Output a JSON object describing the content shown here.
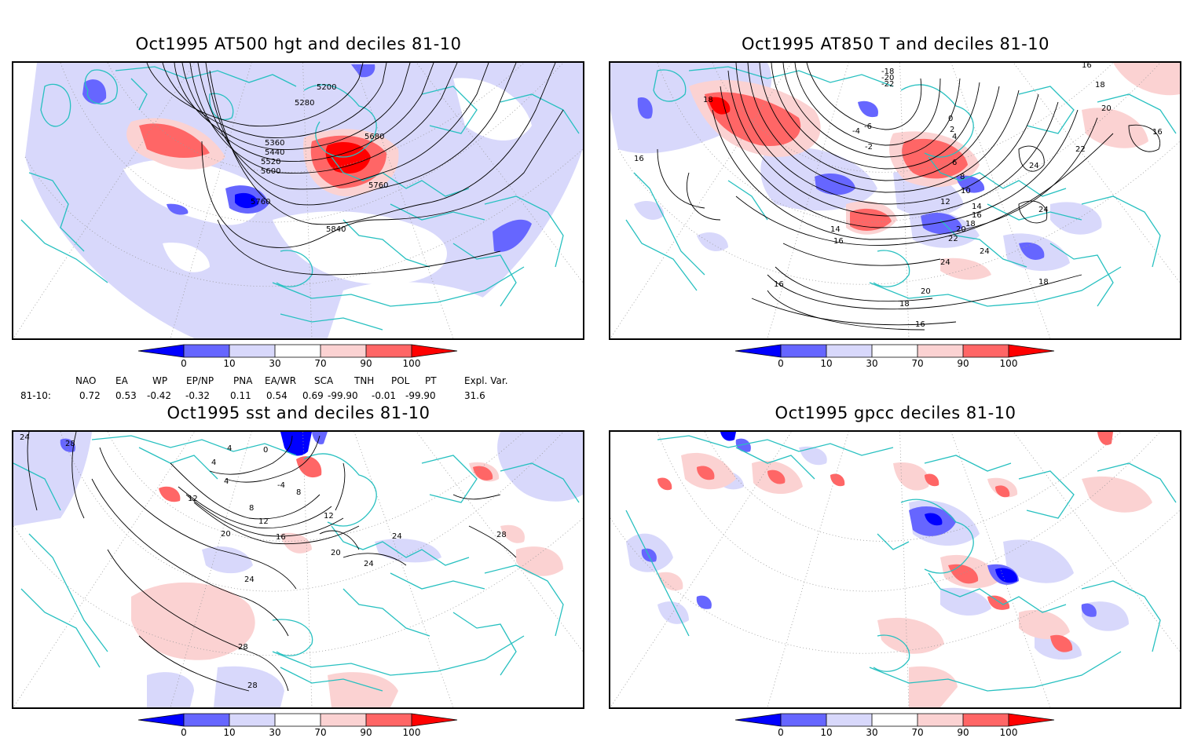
{
  "panels": [
    {
      "id": "top-left",
      "title": "Oct1995 AT500 hgt and deciles 81-10",
      "contour_labels": [
        "5200",
        "5280",
        "5360",
        "5440",
        "5520",
        "5600",
        "5680",
        "5760",
        "5760",
        "5840"
      ]
    },
    {
      "id": "top-right",
      "title": "Oct1995 AT850 T and deciles 81-10",
      "contour_labels": [
        "18",
        "16",
        "-18",
        "-20",
        "-22",
        "-6",
        "-4",
        "-2",
        "0",
        "2",
        "4",
        "6",
        "8",
        "10",
        "12",
        "14",
        "16",
        "18",
        "20",
        "22",
        "24",
        "24",
        "24",
        "24",
        "16",
        "18",
        "20",
        "22",
        "18",
        "16",
        "16",
        "14",
        "16",
        "18",
        "20",
        "16"
      ]
    },
    {
      "id": "bottom-left",
      "title": "Oct1995 sst and deciles 81-10",
      "contour_labels": [
        "24",
        "28",
        "0",
        "4",
        "4",
        "-4",
        "4",
        "8",
        "8",
        "12",
        "12",
        "16",
        "20",
        "20",
        "24",
        "24",
        "24",
        "28",
        "28",
        "28",
        "12"
      ]
    },
    {
      "id": "bottom-right",
      "title": "Oct1995 gpcc deciles 81-10",
      "contour_labels": []
    }
  ],
  "colorbar": {
    "ticks": [
      "0",
      "10",
      "30",
      "70",
      "90",
      "100"
    ],
    "colors": [
      "#0000ff",
      "#6666ff",
      "#d8d8fb",
      "#ffffff",
      "#fbd2d2",
      "#ff6666",
      "#ff0000"
    ]
  },
  "indices": {
    "headers": [
      "NAO",
      "EA",
      "WP",
      "EP/NP",
      "PNA",
      "EA/WR",
      "SCA",
      "TNH",
      "POL",
      "PT",
      "Expl. Var."
    ],
    "row_label": "81-10:",
    "values": [
      "0.72",
      "0.53",
      "-0.42",
      "-0.32",
      "0.11",
      "0.54",
      "0.69",
      "-99.90",
      "-0.01",
      "-99.90",
      "31.6"
    ]
  }
}
